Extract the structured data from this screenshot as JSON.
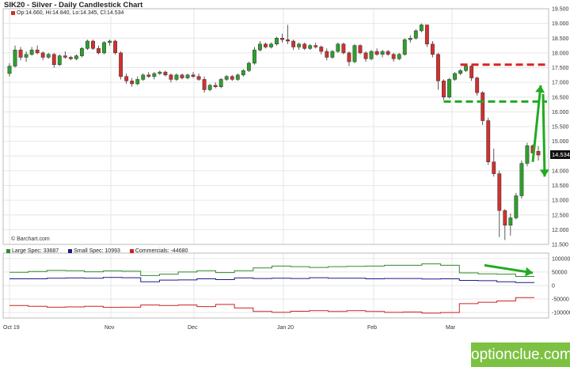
{
  "header": {
    "title": "SIK20 - Silver - Daily Candlestick Chart",
    "ohlc": "Op:14.660, Hi:14.840, Lo:14.345, Cl:14.534",
    "last_price": "14.534",
    "credit": "© Barchart.com"
  },
  "cot_legend": [
    {
      "label": "Large Spec: 33687",
      "color": "#2e8b2e"
    },
    {
      "label": "Small Spec: 10993",
      "color": "#1a1a8c"
    },
    {
      "label": "Commercials: -44680",
      "color": "#cc2222"
    }
  ],
  "brand": "optionclue.com",
  "colors": {
    "up": "#2ca02c",
    "down": "#d32f2f",
    "grid": "#e6e6e6",
    "annotation_green": "#22aa22",
    "annotation_red": "#dd2222"
  },
  "chart_data": [
    {
      "type": "candlestick",
      "title": "SIK20 - Silver - Daily Candlestick Chart",
      "y_ticks": [
        "19.500",
        "19.000",
        "18.500",
        "18.000",
        "17.500",
        "17.000",
        "16.500",
        "16.000",
        "15.500",
        "15.000",
        "14.500",
        "14.000",
        "13.500",
        "13.000",
        "12.500",
        "12.000",
        "11.500"
      ],
      "ylim": [
        11.5,
        19.5
      ],
      "x_labels": [
        "Oct 19",
        "Nov",
        "Dec",
        "Jan 20",
        "Feb",
        "Mar"
      ],
      "grid": true,
      "candles": [
        [
          17.3,
          17.65,
          17.2,
          17.55
        ],
        [
          17.55,
          18.25,
          17.5,
          18.1
        ],
        [
          18.1,
          18.2,
          17.75,
          17.85
        ],
        [
          17.85,
          18.05,
          17.7,
          17.95
        ],
        [
          17.95,
          18.2,
          17.9,
          18.1
        ],
        [
          18.1,
          18.25,
          17.95,
          18.0
        ],
        [
          18.0,
          18.05,
          17.75,
          17.85
        ],
        [
          17.85,
          18.0,
          17.8,
          17.95
        ],
        [
          17.95,
          18.0,
          17.5,
          17.6
        ],
        [
          17.6,
          17.95,
          17.55,
          17.9
        ],
        [
          17.9,
          18.05,
          17.8,
          17.85
        ],
        [
          17.85,
          17.9,
          17.75,
          17.8
        ],
        [
          17.8,
          17.95,
          17.75,
          17.9
        ],
        [
          17.9,
          18.2,
          17.85,
          18.15
        ],
        [
          18.15,
          18.45,
          18.1,
          18.4
        ],
        [
          18.4,
          18.45,
          18.1,
          18.15
        ],
        [
          18.15,
          18.25,
          17.95,
          18.0
        ],
        [
          18.0,
          18.4,
          17.95,
          18.35
        ],
        [
          18.35,
          18.45,
          18.25,
          18.4
        ],
        [
          18.4,
          18.45,
          17.95,
          18.0
        ],
        [
          18.0,
          18.05,
          17.1,
          17.2
        ],
        [
          17.2,
          17.3,
          16.95,
          17.05
        ],
        [
          17.05,
          17.15,
          16.85,
          16.95
        ],
        [
          16.95,
          17.2,
          16.9,
          17.1
        ],
        [
          17.1,
          17.3,
          17.05,
          17.25
        ],
        [
          17.25,
          17.35,
          17.15,
          17.2
        ],
        [
          17.2,
          17.35,
          17.1,
          17.3
        ],
        [
          17.3,
          17.4,
          17.25,
          17.35
        ],
        [
          17.35,
          17.4,
          17.2,
          17.25
        ],
        [
          17.25,
          17.3,
          17.0,
          17.1
        ],
        [
          17.1,
          17.3,
          17.05,
          17.25
        ],
        [
          17.25,
          17.3,
          17.1,
          17.15
        ],
        [
          17.15,
          17.3,
          17.1,
          17.25
        ],
        [
          17.25,
          17.35,
          17.15,
          17.2
        ],
        [
          17.2,
          17.3,
          17.05,
          17.1
        ],
        [
          17.1,
          17.2,
          16.65,
          16.75
        ],
        [
          16.75,
          16.95,
          16.7,
          16.9
        ],
        [
          16.9,
          17.0,
          16.8,
          16.85
        ],
        [
          16.85,
          17.15,
          16.8,
          17.1
        ],
        [
          17.1,
          17.25,
          17.05,
          17.2
        ],
        [
          17.2,
          17.25,
          17.05,
          17.1
        ],
        [
          17.1,
          17.3,
          17.05,
          17.25
        ],
        [
          17.25,
          17.45,
          17.2,
          17.4
        ],
        [
          17.4,
          17.7,
          17.35,
          17.65
        ],
        [
          17.65,
          18.2,
          17.6,
          18.1
        ],
        [
          18.1,
          18.4,
          18.05,
          18.3
        ],
        [
          18.3,
          18.35,
          18.15,
          18.2
        ],
        [
          18.2,
          18.35,
          18.15,
          18.3
        ],
        [
          18.3,
          18.55,
          18.25,
          18.5
        ],
        [
          18.5,
          18.65,
          18.35,
          18.45
        ],
        [
          18.45,
          18.95,
          18.3,
          18.4
        ],
        [
          18.4,
          18.45,
          18.1,
          18.2
        ],
        [
          18.2,
          18.35,
          18.1,
          18.3
        ],
        [
          18.3,
          18.35,
          18.1,
          18.15
        ],
        [
          18.15,
          18.3,
          18.1,
          18.25
        ],
        [
          18.25,
          18.35,
          18.15,
          18.2
        ],
        [
          18.2,
          18.25,
          17.95,
          18.05
        ],
        [
          18.05,
          18.15,
          17.75,
          17.85
        ],
        [
          17.85,
          18.1,
          17.8,
          18.05
        ],
        [
          18.05,
          18.35,
          18.0,
          18.3
        ],
        [
          18.3,
          18.35,
          17.95,
          18.0
        ],
        [
          18.0,
          18.05,
          17.55,
          17.7
        ],
        [
          17.7,
          18.3,
          17.65,
          18.25
        ],
        [
          18.25,
          18.3,
          17.95,
          18.0
        ],
        [
          18.0,
          18.05,
          17.7,
          17.8
        ],
        [
          17.8,
          18.1,
          17.75,
          18.05
        ],
        [
          18.05,
          18.15,
          17.9,
          17.95
        ],
        [
          17.95,
          18.1,
          17.85,
          18.05
        ],
        [
          18.05,
          18.1,
          17.9,
          17.95
        ],
        [
          17.95,
          18.0,
          17.7,
          17.8
        ],
        [
          17.8,
          18.0,
          17.75,
          17.95
        ],
        [
          17.95,
          18.5,
          17.9,
          18.45
        ],
        [
          18.45,
          18.6,
          18.35,
          18.5
        ],
        [
          18.5,
          18.8,
          18.45,
          18.75
        ],
        [
          18.75,
          19.0,
          18.7,
          18.95
        ],
        [
          18.95,
          18.95,
          18.2,
          18.3
        ],
        [
          18.3,
          18.4,
          17.85,
          17.95
        ],
        [
          17.95,
          18.0,
          16.75,
          17.05
        ],
        [
          17.05,
          17.1,
          16.4,
          16.5
        ],
        [
          16.5,
          17.15,
          16.45,
          17.1
        ],
        [
          17.1,
          17.35,
          17.05,
          17.3
        ],
        [
          17.3,
          17.45,
          17.25,
          17.4
        ],
        [
          17.4,
          17.6,
          17.35,
          17.55
        ],
        [
          17.55,
          17.6,
          17.05,
          17.15
        ],
        [
          17.15,
          17.2,
          16.55,
          16.65
        ],
        [
          16.65,
          16.7,
          15.55,
          15.7
        ],
        [
          15.7,
          15.8,
          14.2,
          14.3
        ],
        [
          14.3,
          14.75,
          13.8,
          13.9
        ],
        [
          13.9,
          14.0,
          11.75,
          12.65
        ],
        [
          12.65,
          12.7,
          11.65,
          12.15
        ],
        [
          12.15,
          12.55,
          11.8,
          12.4
        ],
        [
          12.4,
          13.25,
          12.35,
          13.15
        ],
        [
          13.15,
          14.35,
          13.05,
          14.25
        ],
        [
          14.25,
          14.95,
          14.15,
          14.85
        ],
        [
          14.85,
          14.9,
          14.35,
          14.6
        ],
        [
          14.66,
          14.84,
          14.345,
          14.534
        ]
      ],
      "annotations": {
        "red_dashed_level": 17.6,
        "green_dashed_level": 16.35,
        "arrow_up": [
          14.3,
          16.9
        ],
        "arrow_down": [
          16.6,
          13.8
        ]
      }
    },
    {
      "type": "line",
      "title": "COT",
      "y_ticks": [
        "100000",
        "50000",
        "0",
        "-50000",
        "-100000"
      ],
      "ylim": [
        -120000,
        120000
      ],
      "series": [
        {
          "name": "Large Spec: 33687",
          "color": "#2e8b2e",
          "values": [
            49000,
            52000,
            56000,
            55000,
            51000,
            54000,
            53000,
            37000,
            42000,
            50000,
            55000,
            48000,
            55000,
            65000,
            72000,
            70000,
            67000,
            70000,
            71000,
            72000,
            75000,
            75000,
            80000,
            75000,
            47000,
            43000,
            42000,
            33687
          ]
        },
        {
          "name": "Small Spec: 10993",
          "color": "#1a1a8c",
          "values": [
            25000,
            25000,
            27000,
            28000,
            27000,
            30000,
            29000,
            14000,
            20000,
            21000,
            25000,
            22000,
            28000,
            26000,
            27000,
            26000,
            29000,
            27000,
            27000,
            25000,
            26000,
            26000,
            24000,
            25000,
            19000,
            18000,
            14000,
            10993
          ]
        },
        {
          "name": "Commercials: -44680",
          "color": "#cc2222",
          "values": [
            -74000,
            -77000,
            -80000,
            -79000,
            -77000,
            -81000,
            -80000,
            -72000,
            -74000,
            -72000,
            -78000,
            -70000,
            -83000,
            -96000,
            -99000,
            -95000,
            -93000,
            -96000,
            -93000,
            -96000,
            -99000,
            -98000,
            -102000,
            -100000,
            -67000,
            -62000,
            -57000,
            -44680
          ]
        }
      ]
    }
  ]
}
